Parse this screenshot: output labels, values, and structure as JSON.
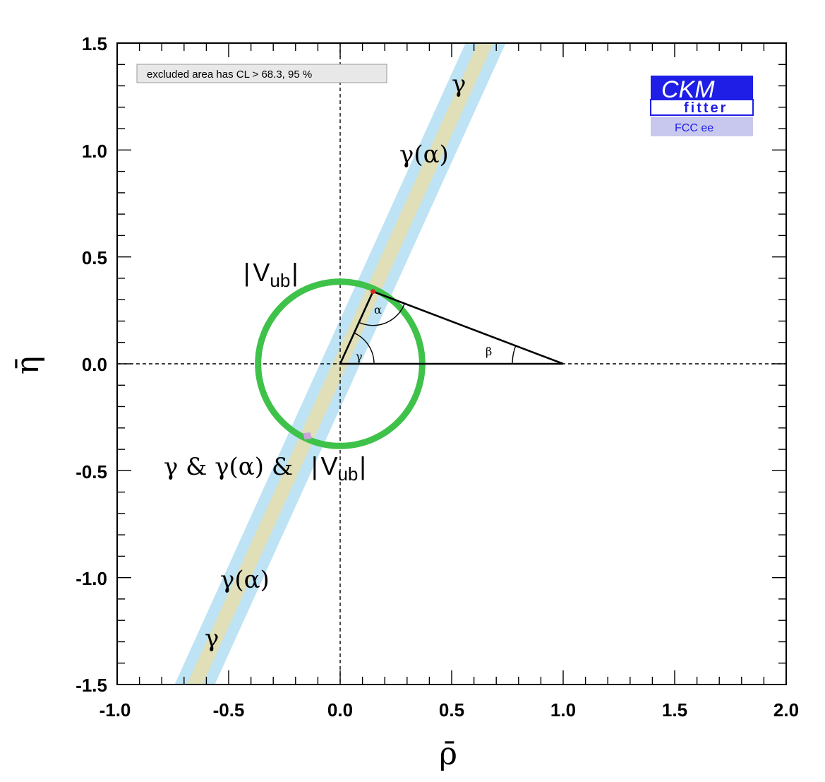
{
  "chart_data": {
    "type": "scatter",
    "title": "",
    "xlabel": "ρ̄",
    "ylabel": "η̄",
    "xlim": [
      -1.0,
      2.0
    ],
    "ylim": [
      -1.5,
      1.5
    ],
    "x_ticks": [
      "-1.0",
      "-0.5",
      "0.0",
      "0.5",
      "1.0",
      "1.5",
      "2.0"
    ],
    "y_ticks": [
      "1.5",
      "1.0",
      "0.5",
      "0.0",
      "-0.5",
      "-1.0",
      "-1.5"
    ],
    "legend_box": "excluded area has CL  > 68.3, 95 %",
    "apex": {
      "rho": 0.147,
      "eta": 0.338
    },
    "gamma_band": {
      "slope": 2.3,
      "outer_half_width": 0.09,
      "inner_half_width": 0.035
    },
    "vub_ring": {
      "center": [
        0,
        0
      ],
      "radius": 0.368
    },
    "triangle": {
      "vertices": [
        [
          0,
          0
        ],
        [
          1,
          0
        ],
        [
          0.147,
          0.338
        ]
      ]
    },
    "annotations": {
      "gamma_top": "γ",
      "gamma_alpha_top": "γ(α)",
      "vub_label_bar_left": "|",
      "vub_label_V": "V",
      "vub_label_sub": "ub",
      "vub_label_bar_right": "|",
      "alpha_angle": "α",
      "beta_angle": "β",
      "gamma_angle": "γ",
      "combined_part1": "γ & γ(α) &",
      "combined_bar_left": "|",
      "combined_V": "V",
      "combined_sub": "ub",
      "combined_bar_right": "|",
      "gamma_alpha_bottom": "γ(α)",
      "gamma_bottom": "γ"
    },
    "colors": {
      "band_outer": "#bde3f5",
      "band_inner": "#e0dfb8",
      "ring": "#3fc24a",
      "apex_point": "#d8201f",
      "combined_region": "#c9a3dc",
      "logo_blue": "#1e1ee6",
      "logo_light": "#c8c8ee"
    }
  },
  "logo": {
    "main": "CKM",
    "sub": "fitter",
    "experiment": "FCC ee"
  }
}
